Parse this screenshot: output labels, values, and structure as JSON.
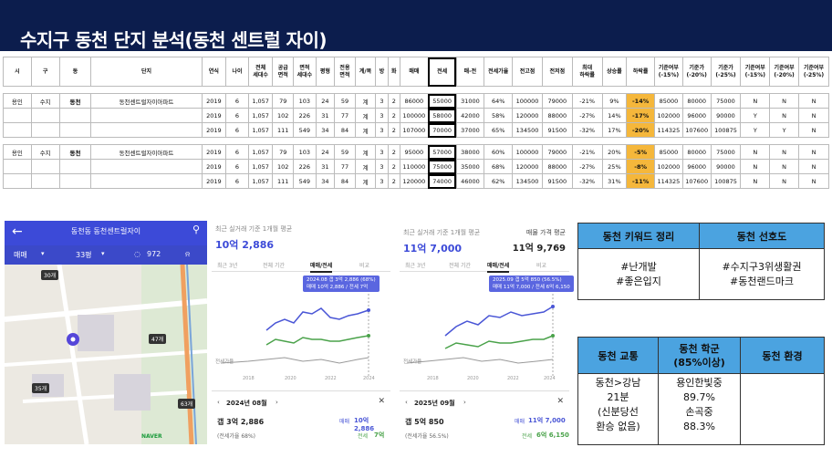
{
  "page_title": "수지구 동천 단지 분석(동천 센트럴 자이)",
  "table": {
    "headers": [
      "시",
      "구",
      "동",
      "단지",
      "연식",
      "나이",
      "전체\n세대수",
      "공급\n면적",
      "면적\n세대수",
      "평형",
      "전용\n면적",
      "계/복",
      "방",
      "화",
      "매매",
      "전세",
      "매-전",
      "전세가율",
      "전고점",
      "전저점",
      "최대\n하락률",
      "상승률",
      "하락률",
      "기준여부\n(-15%)",
      "기준가\n(-20%)",
      "기준가\n(-25%)",
      "기준여부\n(-15%)",
      "기준여부\n(-20%)",
      "기준여부\n(-25%)"
    ],
    "group1": [
      [
        "용인",
        "수지",
        "동천",
        "동천센트럴자이아파트",
        "2019",
        "6",
        "1,057",
        "79",
        "103",
        "24",
        "59",
        "계",
        "3",
        "2",
        "86000",
        "55000",
        "31000",
        "64%",
        "100000",
        "79000",
        "-21%",
        "9%",
        "-14%",
        "85000",
        "80000",
        "75000",
        "N",
        "N",
        "N"
      ],
      [
        "",
        "",
        "",
        "",
        "2019",
        "6",
        "1,057",
        "102",
        "226",
        "31",
        "77",
        "계",
        "3",
        "2",
        "100000",
        "58000",
        "42000",
        "58%",
        "120000",
        "88000",
        "-27%",
        "14%",
        "-17%",
        "102000",
        "96000",
        "90000",
        "Y",
        "N",
        "N"
      ],
      [
        "",
        "",
        "",
        "",
        "2019",
        "6",
        "1,057",
        "111",
        "549",
        "34",
        "84",
        "계",
        "3",
        "2",
        "107000",
        "70000",
        "37000",
        "65%",
        "134500",
        "91500",
        "-32%",
        "17%",
        "-20%",
        "114325",
        "107600",
        "100875",
        "Y",
        "Y",
        "N"
      ]
    ],
    "group2": [
      [
        "용인",
        "수지",
        "동천",
        "동천센트럴자이아파트",
        "2019",
        "6",
        "1,057",
        "79",
        "103",
        "24",
        "59",
        "계",
        "3",
        "2",
        "95000",
        "57000",
        "38000",
        "60%",
        "100000",
        "79000",
        "-21%",
        "20%",
        "-5%",
        "85000",
        "80000",
        "75000",
        "N",
        "N",
        "N"
      ],
      [
        "",
        "",
        "",
        "",
        "2019",
        "6",
        "1,057",
        "102",
        "226",
        "31",
        "77",
        "계",
        "3",
        "2",
        "110000",
        "75000",
        "35000",
        "68%",
        "120000",
        "88000",
        "-27%",
        "25%",
        "-8%",
        "102000",
        "96000",
        "90000",
        "N",
        "N",
        "N"
      ],
      [
        "",
        "",
        "",
        "",
        "2019",
        "6",
        "1,057",
        "111",
        "549",
        "34",
        "84",
        "계",
        "3",
        "2",
        "120000",
        "74000",
        "46000",
        "62%",
        "134500",
        "91500",
        "-32%",
        "31%",
        "-11%",
        "114325",
        "107600",
        "100875",
        "N",
        "N",
        "N"
      ]
    ]
  },
  "phone": {
    "title": "동천동 동천센트럴자이",
    "tab_trade": "매매",
    "tab_size": "33평",
    "tab_count": "972",
    "clusters": [
      "30개",
      "47개",
      "35개",
      "63개"
    ],
    "map_brand": "NAVER"
  },
  "panel1": {
    "caption": "최근 실거래 기준 1개월 평균",
    "price": "10억 2,886",
    "tabs": [
      "최근 3년",
      "전체 기간",
      "매매/전세",
      "비교"
    ],
    "tip_line1": "2024.08 갭 3억 2,886 (68%)",
    "tip_line2": "매매 10억 2,886 / 전세 7억",
    "legend": "전세가율",
    "years": [
      "2018",
      "2020",
      "2022",
      "2024"
    ],
    "month": "2024년 08월",
    "gap": "갭 3억 2,886",
    "trade_label": "매매",
    "trade_val": "10억 2,886",
    "rate": "(전세가율 68%)",
    "jeonse_label": "전세",
    "jeonse_val": "7억"
  },
  "panel2": {
    "caption": "최근 실거래 기준 1개월 평균",
    "price": "11억 7,000",
    "ask_caption": "매물 가격 평균",
    "ask_price": "11억 9,769",
    "tabs": [
      "최근 3년",
      "전체 기간",
      "매매/전세",
      "비교"
    ],
    "tip_line1": "2025.09 갭 5억 850 (56.5%)",
    "tip_line2": "매매 11억 7,000 / 전세 6억 6,150",
    "legend": "전세가율",
    "years": [
      "2018",
      "2020",
      "2022",
      "2024"
    ],
    "month": "2025년 09월",
    "gap": "갭 5억 850",
    "trade_label": "매매",
    "trade_val": "11억 7,000",
    "rate": "(전세가율 56.5%)",
    "jeonse_label": "전세",
    "jeonse_val": "6억 6,150"
  },
  "kw1": {
    "h1": "동천 키워드 정리",
    "h2": "동천 선호도",
    "c1a": "#난개발",
    "c1b": "#좋은입지",
    "c2a": "#수지구3위생활권",
    "c2b": "#동천랜드마크"
  },
  "kw2": {
    "h1": "동천 교통",
    "h2a": "동천 학군",
    "h2b": "(85%이상)",
    "h3": "동천 환경",
    "t1": "동천>강남",
    "t2": "21분",
    "t3": "(신분당선",
    "t4": "환승 없음)",
    "s1": "용인한빛중",
    "s2": "89.7%",
    "s3": "손곡중",
    "s4": "88.3%"
  }
}
